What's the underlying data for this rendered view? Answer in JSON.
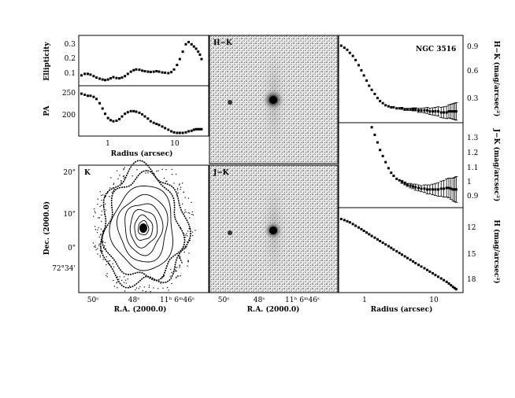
{
  "figure": {
    "galaxy_label": "NGC 3516",
    "panel_labels": {
      "hk": "H−K",
      "jk": "J−K",
      "k": "K"
    }
  },
  "axes_text": {
    "ellipticity": {
      "ylabel": "Ellipticity",
      "ticks": [
        "0.3",
        "0.2",
        "0.1"
      ]
    },
    "pa": {
      "ylabel": "PA",
      "ticks": [
        "250",
        "200"
      ],
      "xlabel": "Radius (arcsec)",
      "xticks": [
        "1",
        "10"
      ]
    },
    "kmap": {
      "ylabel": "Dec. (2000.0)",
      "xlabel": "R.A. (2000.0)",
      "yticks": [
        "20\"",
        "10\"",
        "0\"",
        "72°34'"
      ],
      "xticks": [
        "50ˢ",
        "48ˢ",
        "11ʰ 6ᵐ46ˢ"
      ]
    },
    "jkmap": {
      "xlabel": "R.A. (2000.0)",
      "xticks": [
        "50ˢ",
        "48ˢ",
        "11ʰ 6ᵐ46ˢ"
      ]
    },
    "hk_profile": {
      "ylabel": "H−K (mag/arcsec²)",
      "ticks": [
        "0.9",
        "0.6",
        "0.3"
      ]
    },
    "jk_profile": {
      "ylabel": "J−K (mag/arcsec²)",
      "ticks": [
        "1.3",
        "1.2",
        "1.1",
        "1",
        "0.9"
      ]
    },
    "h_profile": {
      "ylabel": "H (mag/arcsec²)",
      "ticks": [
        "12",
        "15",
        "18"
      ],
      "xlabel": "Radius (arcsec)",
      "xticks": [
        "1",
        "10"
      ]
    }
  },
  "chart_data": [
    {
      "type": "scatter",
      "name": "ellipticity",
      "xlabel": "Radius (arcsec)",
      "ylabel": "Ellipticity",
      "xscale": "log",
      "xlim": [
        0.35,
        18
      ],
      "ylim": [
        0.02,
        0.36
      ],
      "x": [
        0.38,
        0.42,
        0.46,
        0.5,
        0.55,
        0.6,
        0.66,
        0.72,
        0.78,
        0.85,
        0.92,
        1.0,
        1.1,
        1.2,
        1.3,
        1.42,
        1.55,
        1.7,
        1.85,
        2.0,
        2.2,
        2.4,
        2.6,
        2.85,
        3.1,
        3.4,
        3.7,
        4.0,
        4.4,
        4.8,
        5.3,
        5.8,
        6.3,
        6.9,
        7.5,
        8.2,
        9.0,
        9.8,
        10.7,
        11.5,
        12.3,
        13.1,
        13.8,
        14.5
      ],
      "y": [
        0.09,
        0.1,
        0.1,
        0.095,
        0.085,
        0.075,
        0.068,
        0.062,
        0.058,
        0.062,
        0.07,
        0.078,
        0.072,
        0.07,
        0.075,
        0.085,
        0.1,
        0.115,
        0.125,
        0.13,
        0.128,
        0.122,
        0.118,
        0.115,
        0.113,
        0.115,
        0.118,
        0.115,
        0.11,
        0.108,
        0.105,
        0.112,
        0.13,
        0.16,
        0.2,
        0.25,
        0.3,
        0.315,
        0.3,
        0.285,
        0.27,
        0.25,
        0.23,
        0.2
      ]
    },
    {
      "type": "scatter",
      "name": "position-angle",
      "xlabel": "Radius (arcsec)",
      "ylabel": "PA",
      "xscale": "log",
      "xlim": [
        0.35,
        18
      ],
      "ylim": [
        170,
        265
      ],
      "x": [
        0.38,
        0.42,
        0.46,
        0.5,
        0.55,
        0.6,
        0.66,
        0.72,
        0.78,
        0.85,
        0.92,
        1.0,
        1.1,
        1.2,
        1.3,
        1.42,
        1.55,
        1.7,
        1.85,
        2.0,
        2.2,
        2.4,
        2.6,
        2.85,
        3.1,
        3.4,
        3.7,
        4.0,
        4.4,
        4.8,
        5.3,
        5.8,
        6.3,
        6.9,
        7.5,
        8.2,
        9.0,
        9.8,
        10.7,
        11.5,
        12.3,
        13.1,
        13.8,
        14.5
      ],
      "y": [
        250,
        248,
        246,
        246,
        244,
        240,
        232,
        222,
        212,
        204,
        200,
        198,
        199,
        202,
        207,
        212,
        215,
        217,
        217,
        216,
        214,
        211,
        207,
        203,
        198,
        195,
        193,
        191,
        188,
        185,
        182,
        179,
        177,
        176,
        176,
        176,
        177,
        179,
        180,
        182,
        183,
        183,
        183,
        183
      ]
    },
    {
      "type": "scatter",
      "name": "h-k-profile",
      "xlabel": "Radius (arcsec)",
      "ylabel": "H−K (mag/arcsec²)",
      "xscale": "log",
      "xlim": [
        0.35,
        18
      ],
      "ylim": [
        0.15,
        1.0
      ],
      "x": [
        0.38,
        0.42,
        0.46,
        0.5,
        0.55,
        0.6,
        0.66,
        0.72,
        0.78,
        0.85,
        0.92,
        1.0,
        1.1,
        1.2,
        1.3,
        1.42,
        1.55,
        1.7,
        1.85,
        2.0,
        2.2,
        2.4,
        2.6,
        2.85,
        3.1,
        3.4,
        3.7,
        4.0,
        4.4,
        4.8,
        5.3,
        5.8,
        6.3,
        6.9,
        7.5,
        8.2,
        9.0,
        9.8,
        10.7,
        11.5,
        12.3,
        13.1,
        13.8,
        14.5
      ],
      "y": [
        0.9,
        0.88,
        0.86,
        0.83,
        0.8,
        0.76,
        0.71,
        0.66,
        0.61,
        0.56,
        0.51,
        0.47,
        0.43,
        0.39,
        0.36,
        0.34,
        0.32,
        0.31,
        0.3,
        0.3,
        0.29,
        0.29,
        0.29,
        0.28,
        0.28,
        0.28,
        0.28,
        0.28,
        0.27,
        0.27,
        0.27,
        0.27,
        0.26,
        0.26,
        0.26,
        0.26,
        0.25,
        0.25,
        0.25,
        0.26,
        0.26,
        0.26,
        0.26,
        0.26
      ],
      "yerr": [
        0,
        0,
        0,
        0,
        0,
        0,
        0,
        0,
        0,
        0,
        0,
        0,
        0,
        0,
        0,
        0,
        0,
        0,
        0,
        0,
        0,
        0,
        0.01,
        0.01,
        0.01,
        0.01,
        0.015,
        0.015,
        0.02,
        0.02,
        0.025,
        0.03,
        0.03,
        0.035,
        0.04,
        0.045,
        0.05,
        0.055,
        0.06,
        0.065,
        0.07,
        0.075,
        0.08,
        0.085
      ]
    },
    {
      "type": "scatter",
      "name": "j-k-profile",
      "xlabel": "Radius (arcsec)",
      "ylabel": "J−K (mag/arcsec²)",
      "xscale": "log",
      "xlim": [
        0.35,
        18
      ],
      "ylim": [
        0.82,
        1.38
      ],
      "x": [
        1.0,
        1.1,
        1.2,
        1.3,
        1.42,
        1.55,
        1.7,
        1.85,
        2.0,
        2.2,
        2.4,
        2.6,
        2.85,
        3.1,
        3.4,
        3.7,
        4.0,
        4.4,
        4.8,
        5.3,
        5.8,
        6.3,
        6.9,
        7.5,
        8.2,
        9.0,
        9.8,
        10.7,
        11.5,
        12.3,
        13.1,
        13.8,
        14.5
      ],
      "y": [
        1.35,
        1.3,
        1.25,
        1.2,
        1.16,
        1.12,
        1.08,
        1.05,
        1.03,
        1.01,
        1.0,
        0.99,
        0.98,
        0.97,
        0.965,
        0.96,
        0.955,
        0.95,
        0.945,
        0.945,
        0.94,
        0.94,
        0.94,
        0.94,
        0.94,
        0.945,
        0.945,
        0.95,
        0.95,
        0.945,
        0.94,
        0.94,
        0.94
      ],
      "yerr": [
        0,
        0,
        0,
        0,
        0,
        0,
        0,
        0,
        0,
        0,
        0,
        0.01,
        0.01,
        0.01,
        0.015,
        0.015,
        0.02,
        0.02,
        0.02,
        0.025,
        0.03,
        0.03,
        0.035,
        0.04,
        0.045,
        0.05,
        0.055,
        0.06,
        0.065,
        0.07,
        0.075,
        0.08,
        0.085
      ]
    },
    {
      "type": "scatter",
      "name": "h-profile",
      "xlabel": "Radius (arcsec)",
      "ylabel": "H (mag/arcsec²)",
      "xscale": "log",
      "xlim": [
        0.35,
        18
      ],
      "ylim": [
        11,
        18.5
      ],
      "y_inverted": true,
      "x": [
        0.38,
        0.42,
        0.46,
        0.5,
        0.55,
        0.6,
        0.66,
        0.72,
        0.78,
        0.85,
        0.92,
        1.0,
        1.1,
        1.2,
        1.3,
        1.42,
        1.55,
        1.7,
        1.85,
        2.0,
        2.2,
        2.4,
        2.6,
        2.85,
        3.1,
        3.4,
        3.7,
        4.0,
        4.4,
        4.8,
        5.3,
        5.8,
        6.3,
        6.9,
        7.5,
        8.2,
        9.0,
        9.8,
        10.7,
        11.5,
        12.3,
        13.1,
        13.8,
        14.5
      ],
      "y": [
        12.0,
        12.1,
        12.2,
        12.3,
        12.45,
        12.6,
        12.75,
        12.9,
        13.05,
        13.2,
        13.35,
        13.5,
        13.65,
        13.8,
        13.95,
        14.1,
        14.25,
        14.4,
        14.55,
        14.7,
        14.85,
        15.0,
        15.15,
        15.3,
        15.45,
        15.6,
        15.75,
        15.9,
        16.05,
        16.2,
        16.35,
        16.5,
        16.65,
        16.8,
        16.95,
        17.1,
        17.25,
        17.4,
        17.55,
        17.7,
        17.85,
        18.0,
        18.1,
        18.2
      ]
    }
  ]
}
